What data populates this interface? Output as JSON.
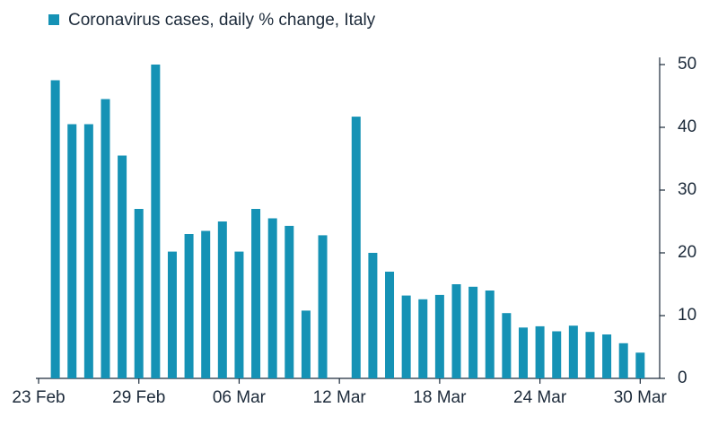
{
  "chart_data": {
    "type": "bar",
    "series": [
      {
        "name": "Coronavirus cases, daily % change, Italy",
        "color": "#1592b5",
        "values": [
          null,
          47.5,
          40.5,
          40.5,
          44.5,
          35.5,
          27,
          50,
          20.2,
          23,
          23.5,
          25,
          20.2,
          27,
          25.5,
          24.3,
          10.8,
          22.8,
          null,
          41.7,
          20,
          17,
          13.2,
          12.6,
          13.3,
          15,
          14.6,
          14,
          10.4,
          8.1,
          8.3,
          7.5,
          8.4,
          7.4,
          7,
          5.6,
          4.1
        ]
      }
    ],
    "categories": [
      "23 Feb",
      null,
      null,
      null,
      null,
      null,
      "29 Feb",
      null,
      null,
      null,
      null,
      null,
      "06 Mar",
      null,
      null,
      null,
      null,
      null,
      "12 Mar",
      null,
      null,
      null,
      null,
      null,
      "18 Mar",
      null,
      null,
      null,
      null,
      null,
      "24 Mar",
      null,
      null,
      null,
      null,
      null,
      "30 Mar"
    ],
    "ylim": [
      0,
      50
    ],
    "yticks": [
      0,
      10,
      20,
      30,
      40,
      50
    ],
    "y_axis_side": "right",
    "legend": "top-left"
  }
}
